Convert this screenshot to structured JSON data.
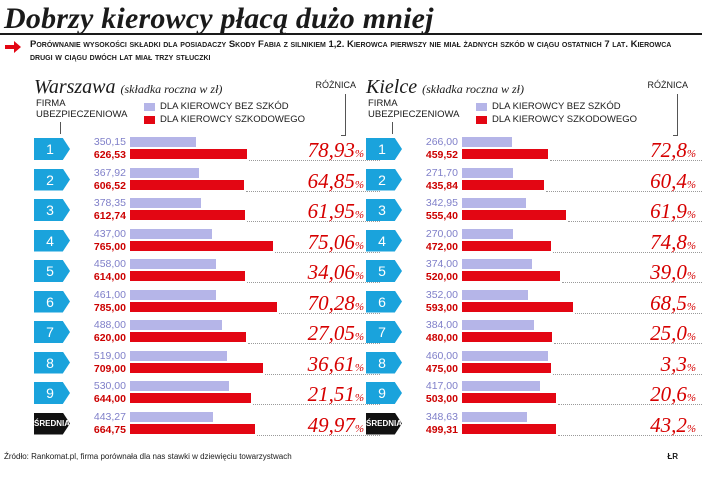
{
  "title": "Dobrzy kierowcy płacą dużo mniej",
  "subtitle": "Porównanie wysokości składki dla posiadaczy Skody Fabia z silnikiem 1,2. Kierowca pierwszy nie miał żadnych szkód w ciągu ostatnich 7 lat. Kierowca drugi w ciągu dwóch lat miał trzy stłuczki",
  "source": "Źródło: Rankomat.pl, firma porównała dla nas stawki w dziewięciu towarzystwach",
  "author": "ŁR",
  "labels": {
    "firma": [
      "FIRMA",
      "UBEZPIECZENIOWA"
    ],
    "roznica": "RÓŻNICA",
    "legend_lo": "DLA KIEROWCY BEZ SZKÓD",
    "legend_hi": "DLA KIEROWCY SZKODOWEGO",
    "srednia": "ŚREDNIA",
    "percent_unit": "%"
  },
  "colors": {
    "lo_bar": "#b5b5e8",
    "hi_bar": "#e30613",
    "lo_text": "#7f7fc9",
    "hi_text": "#cc0000",
    "rank_bg": "#1aa3dc",
    "avg_bg": "#111111",
    "pct": "#d60000",
    "arrow": "#e30613"
  },
  "chart_data": [
    {
      "type": "bar",
      "city": "Warszawa",
      "note": "(składka roczna w zł)",
      "categories": [
        "1",
        "2",
        "3",
        "4",
        "5",
        "6",
        "7",
        "8",
        "9",
        "ŚREDNIA"
      ],
      "series": [
        {
          "name": "DLA KIEROWCY BEZ SZKÓD",
          "values": [
            350.15,
            367.92,
            378.35,
            437.0,
            458.0,
            461.0,
            488.0,
            519.0,
            530.0,
            443.27
          ],
          "labels": [
            "350,15",
            "367,92",
            "378,35",
            "437,00",
            "458,00",
            "461,00",
            "488,00",
            "519,00",
            "530,00",
            "443,27"
          ]
        },
        {
          "name": "DLA KIEROWCY SZKODOWEGO",
          "values": [
            626.53,
            606.52,
            612.74,
            765.0,
            614.0,
            785.0,
            620.0,
            709.0,
            644.0,
            664.75
          ],
          "labels": [
            "626,53",
            "606,52",
            "612,74",
            "765,00",
            "614,00",
            "785,00",
            "620,00",
            "709,00",
            "644,00",
            "664,75"
          ]
        }
      ],
      "difference": [
        "78,93",
        "64,85",
        "61,95",
        "75,06",
        "34,06",
        "70,28",
        "27,05",
        "36,61",
        "21,51",
        "49,97"
      ]
    },
    {
      "type": "bar",
      "city": "Kielce",
      "note": "(składka roczna w zł)",
      "categories": [
        "1",
        "2",
        "3",
        "4",
        "5",
        "6",
        "7",
        "8",
        "9",
        "ŚREDNIA"
      ],
      "series": [
        {
          "name": "DLA KIEROWCY BEZ SZKÓD",
          "values": [
            266.0,
            271.7,
            342.95,
            270.0,
            374.0,
            352.0,
            384.0,
            460.0,
            417.0,
            348.63
          ],
          "labels": [
            "266,00",
            "271,70",
            "342,95",
            "270,00",
            "374,00",
            "352,00",
            "384,00",
            "460,00",
            "417,00",
            "348,63"
          ]
        },
        {
          "name": "DLA KIEROWCY SZKODOWEGO",
          "values": [
            459.52,
            435.84,
            555.4,
            472.0,
            520.0,
            593.0,
            480.0,
            475.0,
            503.0,
            499.31
          ],
          "labels": [
            "459,52",
            "435,84",
            "555,40",
            "472,00",
            "520,00",
            "593,00",
            "480,00",
            "475,00",
            "503,00",
            "499,31"
          ]
        }
      ],
      "difference": [
        "72,8",
        "60,4",
        "61,9",
        "74,8",
        "39,0",
        "68,5",
        "25,0",
        "3,3",
        "20,6",
        "43,2"
      ]
    }
  ]
}
